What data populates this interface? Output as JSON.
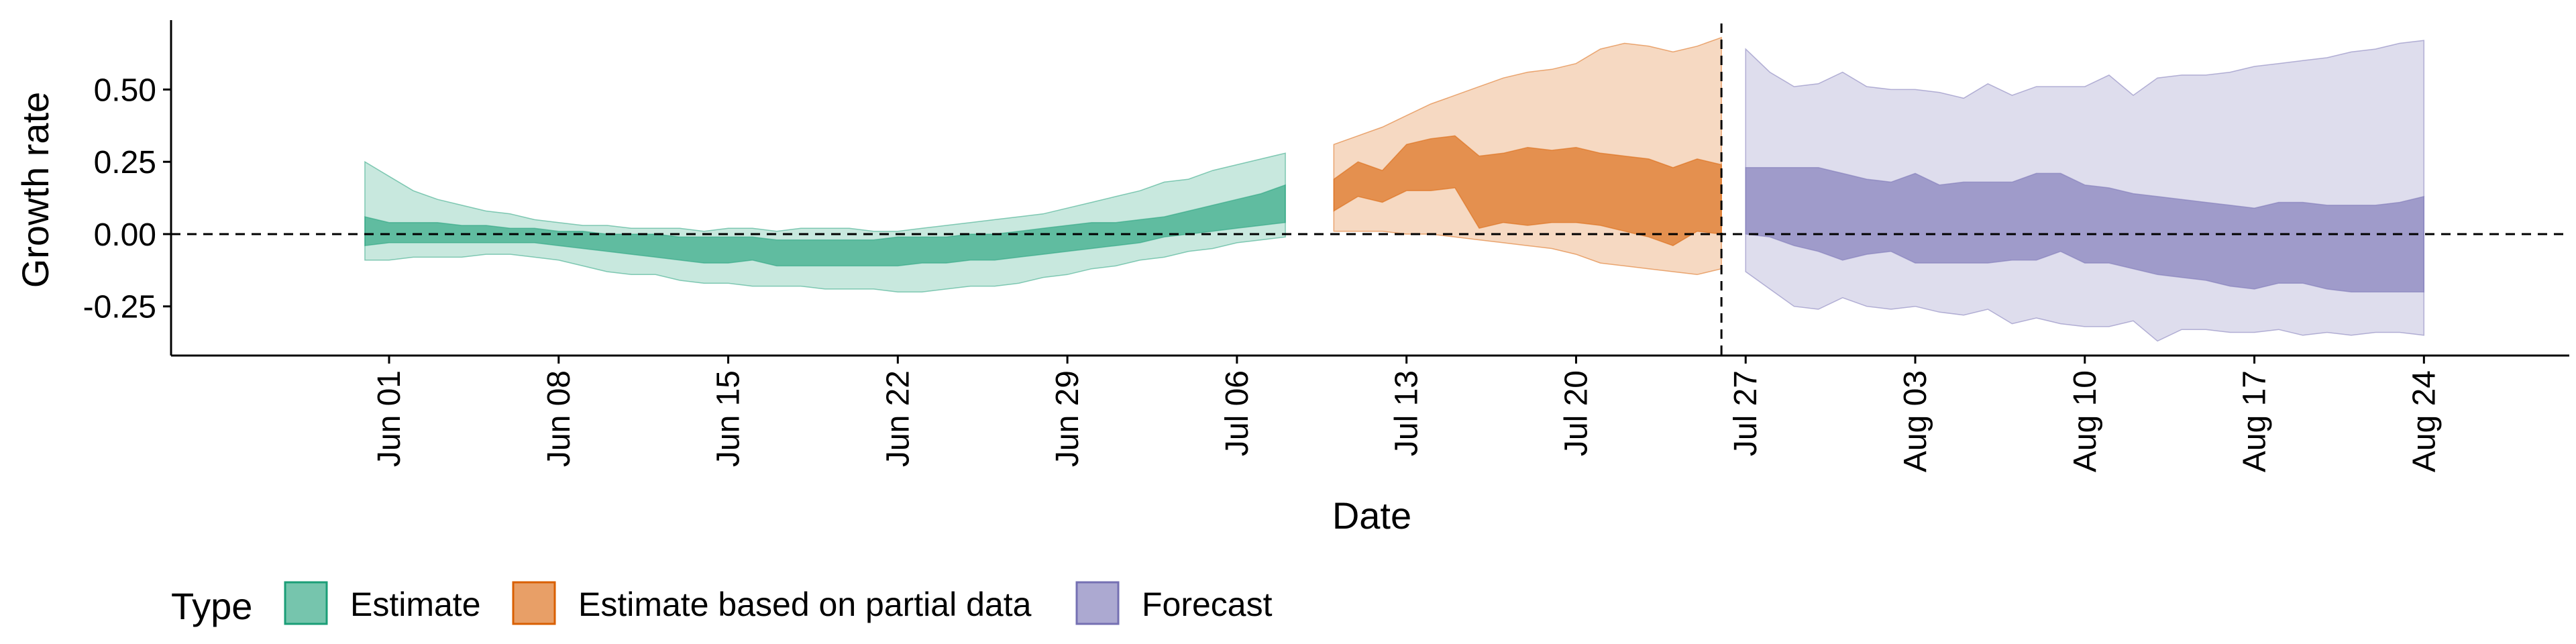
{
  "chart_data": {
    "type": "area",
    "title": "",
    "xlabel": "Date",
    "ylabel": "Growth rate",
    "x_range": [
      "2020-05-23",
      "2020-08-30"
    ],
    "ylim": [
      -0.42,
      0.74
    ],
    "y_ticks": [
      {
        "value": 0.5,
        "label": "0.50"
      },
      {
        "value": 0.25,
        "label": "0.25"
      },
      {
        "value": 0.0,
        "label": "0.00"
      },
      {
        "value": -0.25,
        "label": "-0.25"
      }
    ],
    "x_ticks": [
      {
        "date": "2020-06-01",
        "label": "Jun 01"
      },
      {
        "date": "2020-06-08",
        "label": "Jun 08"
      },
      {
        "date": "2020-06-15",
        "label": "Jun 15"
      },
      {
        "date": "2020-06-22",
        "label": "Jun 22"
      },
      {
        "date": "2020-06-29",
        "label": "Jun 29"
      },
      {
        "date": "2020-07-06",
        "label": "Jul 06"
      },
      {
        "date": "2020-07-13",
        "label": "Jul 13"
      },
      {
        "date": "2020-07-20",
        "label": "Jul 20"
      },
      {
        "date": "2020-07-27",
        "label": "Jul 27"
      },
      {
        "date": "2020-08-03",
        "label": "Aug 03"
      },
      {
        "date": "2020-08-10",
        "label": "Aug 10"
      },
      {
        "date": "2020-08-17",
        "label": "Aug 17"
      },
      {
        "date": "2020-08-24",
        "label": "Aug 24"
      }
    ],
    "hline": {
      "y": 0,
      "style": "dashed"
    },
    "vline": {
      "date": "2020-07-26",
      "style": "dashed"
    },
    "grid": false,
    "legend": {
      "title": "Type",
      "position": "bottom-left"
    },
    "series": [
      {
        "name": "Estimate",
        "color": "#1b9e77",
        "dates": [
          "2020-05-31",
          "2020-06-01",
          "2020-06-02",
          "2020-06-03",
          "2020-06-04",
          "2020-06-05",
          "2020-06-06",
          "2020-06-07",
          "2020-06-08",
          "2020-06-09",
          "2020-06-10",
          "2020-06-11",
          "2020-06-12",
          "2020-06-13",
          "2020-06-14",
          "2020-06-15",
          "2020-06-16",
          "2020-06-17",
          "2020-06-18",
          "2020-06-19",
          "2020-06-20",
          "2020-06-21",
          "2020-06-22",
          "2020-06-23",
          "2020-06-24",
          "2020-06-25",
          "2020-06-26",
          "2020-06-27",
          "2020-06-28",
          "2020-06-29",
          "2020-06-30",
          "2020-07-01",
          "2020-07-02",
          "2020-07-03",
          "2020-07-04",
          "2020-07-05",
          "2020-07-06",
          "2020-07-07",
          "2020-07-08"
        ],
        "lower_90": [
          -0.09,
          -0.09,
          -0.08,
          -0.08,
          -0.08,
          -0.07,
          -0.07,
          -0.08,
          -0.09,
          -0.11,
          -0.13,
          -0.14,
          -0.14,
          -0.16,
          -0.17,
          -0.17,
          -0.18,
          -0.18,
          -0.18,
          -0.19,
          -0.19,
          -0.19,
          -0.2,
          -0.2,
          -0.19,
          -0.18,
          -0.18,
          -0.17,
          -0.15,
          -0.14,
          -0.12,
          -0.11,
          -0.09,
          -0.08,
          -0.06,
          -0.05,
          -0.03,
          -0.02,
          -0.01
        ],
        "lower_50": [
          -0.04,
          -0.03,
          -0.03,
          -0.03,
          -0.03,
          -0.03,
          -0.03,
          -0.03,
          -0.04,
          -0.05,
          -0.06,
          -0.07,
          -0.08,
          -0.09,
          -0.1,
          -0.1,
          -0.09,
          -0.11,
          -0.11,
          -0.11,
          -0.11,
          -0.11,
          -0.11,
          -0.1,
          -0.1,
          -0.09,
          -0.09,
          -0.08,
          -0.07,
          -0.06,
          -0.05,
          -0.04,
          -0.03,
          -0.01,
          0.0,
          0.01,
          0.02,
          0.03,
          0.04
        ],
        "upper_50": [
          0.06,
          0.04,
          0.04,
          0.04,
          0.03,
          0.03,
          0.02,
          0.02,
          0.01,
          0.01,
          0.0,
          0.0,
          0.0,
          -0.01,
          -0.01,
          -0.01,
          -0.01,
          -0.02,
          -0.02,
          -0.02,
          -0.02,
          -0.02,
          -0.01,
          -0.01,
          -0.01,
          0.0,
          0.0,
          0.01,
          0.02,
          0.03,
          0.04,
          0.04,
          0.05,
          0.06,
          0.08,
          0.1,
          0.12,
          0.14,
          0.17
        ],
        "upper_90": [
          0.25,
          0.2,
          0.15,
          0.12,
          0.1,
          0.08,
          0.07,
          0.05,
          0.04,
          0.03,
          0.03,
          0.02,
          0.02,
          0.02,
          0.01,
          0.02,
          0.02,
          0.01,
          0.02,
          0.02,
          0.02,
          0.01,
          0.01,
          0.02,
          0.03,
          0.04,
          0.05,
          0.06,
          0.07,
          0.09,
          0.11,
          0.13,
          0.15,
          0.18,
          0.19,
          0.22,
          0.24,
          0.26,
          0.28
        ]
      },
      {
        "name": "Estimate based on partial data",
        "color": "#d95f02",
        "dates": [
          "2020-07-10",
          "2020-07-11",
          "2020-07-12",
          "2020-07-13",
          "2020-07-14",
          "2020-07-15",
          "2020-07-16",
          "2020-07-17",
          "2020-07-18",
          "2020-07-19",
          "2020-07-20",
          "2020-07-21",
          "2020-07-22",
          "2020-07-23",
          "2020-07-24",
          "2020-07-25",
          "2020-07-26"
        ],
        "lower_90": [
          0.01,
          0.01,
          0.01,
          0.0,
          0.0,
          -0.01,
          -0.02,
          -0.03,
          -0.04,
          -0.05,
          -0.07,
          -0.1,
          -0.11,
          -0.12,
          -0.13,
          -0.14,
          -0.12
        ],
        "lower_50": [
          0.08,
          0.13,
          0.11,
          0.15,
          0.15,
          0.16,
          0.02,
          0.04,
          0.03,
          0.04,
          0.04,
          0.03,
          0.01,
          -0.01,
          -0.04,
          0.01,
          0.0
        ],
        "upper_50": [
          0.19,
          0.25,
          0.22,
          0.31,
          0.33,
          0.34,
          0.27,
          0.28,
          0.3,
          0.29,
          0.3,
          0.28,
          0.27,
          0.26,
          0.23,
          0.26,
          0.24
        ],
        "upper_90": [
          0.31,
          0.34,
          0.37,
          0.41,
          0.45,
          0.48,
          0.51,
          0.54,
          0.56,
          0.57,
          0.59,
          0.64,
          0.66,
          0.65,
          0.63,
          0.65,
          0.68
        ]
      },
      {
        "name": "Forecast",
        "color": "#7570b3",
        "dates": [
          "2020-07-27",
          "2020-07-28",
          "2020-07-29",
          "2020-07-30",
          "2020-07-31",
          "2020-08-01",
          "2020-08-02",
          "2020-08-03",
          "2020-08-04",
          "2020-08-05",
          "2020-08-06",
          "2020-08-07",
          "2020-08-08",
          "2020-08-09",
          "2020-08-10",
          "2020-08-11",
          "2020-08-12",
          "2020-08-13",
          "2020-08-14",
          "2020-08-15",
          "2020-08-16",
          "2020-08-17",
          "2020-08-18",
          "2020-08-19",
          "2020-08-20",
          "2020-08-21",
          "2020-08-22",
          "2020-08-23",
          "2020-08-24"
        ],
        "lower_90": [
          -0.13,
          -0.19,
          -0.25,
          -0.26,
          -0.22,
          -0.25,
          -0.26,
          -0.25,
          -0.27,
          -0.28,
          -0.26,
          -0.31,
          -0.29,
          -0.31,
          -0.32,
          -0.32,
          -0.3,
          -0.37,
          -0.33,
          -0.33,
          -0.34,
          -0.34,
          -0.33,
          -0.35,
          -0.34,
          -0.35,
          -0.34,
          -0.34,
          -0.35
        ],
        "lower_50": [
          0.0,
          -0.01,
          -0.04,
          -0.06,
          -0.09,
          -0.07,
          -0.06,
          -0.1,
          -0.1,
          -0.1,
          -0.1,
          -0.09,
          -0.09,
          -0.06,
          -0.1,
          -0.1,
          -0.12,
          -0.14,
          -0.15,
          -0.16,
          -0.18,
          -0.19,
          -0.17,
          -0.17,
          -0.19,
          -0.2,
          -0.2,
          -0.2,
          -0.2
        ],
        "upper_50": [
          0.23,
          0.23,
          0.23,
          0.23,
          0.21,
          0.19,
          0.18,
          0.21,
          0.17,
          0.18,
          0.18,
          0.18,
          0.21,
          0.21,
          0.17,
          0.16,
          0.14,
          0.13,
          0.12,
          0.11,
          0.1,
          0.09,
          0.11,
          0.11,
          0.1,
          0.1,
          0.1,
          0.11,
          0.13
        ],
        "upper_90": [
          0.64,
          0.56,
          0.51,
          0.52,
          0.56,
          0.51,
          0.5,
          0.5,
          0.49,
          0.47,
          0.52,
          0.48,
          0.51,
          0.51,
          0.51,
          0.55,
          0.48,
          0.54,
          0.55,
          0.55,
          0.56,
          0.58,
          0.59,
          0.6,
          0.61,
          0.63,
          0.64,
          0.66,
          0.67
        ]
      }
    ]
  }
}
